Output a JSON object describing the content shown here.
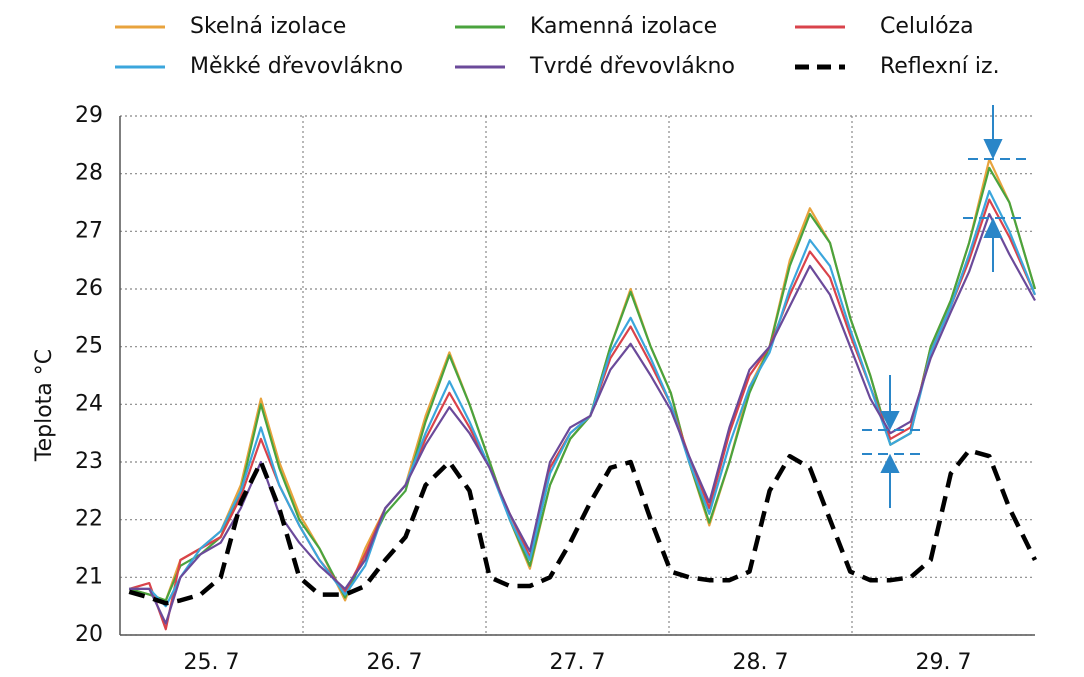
{
  "chart_data": {
    "type": "line",
    "ylabel": "Teplota °C",
    "x": [
      0.05,
      0.16,
      0.25,
      0.33,
      0.44,
      0.55,
      0.66,
      0.77,
      0.87,
      0.98,
      1.09,
      1.23,
      1.34,
      1.45,
      1.56,
      1.67,
      1.8,
      1.91,
      2.02,
      2.13,
      2.24,
      2.35,
      2.46,
      2.57,
      2.68,
      2.79,
      2.9,
      3.01,
      3.11,
      3.22,
      3.33,
      3.44,
      3.55,
      3.66,
      3.77,
      3.88,
      3.99,
      4.1,
      4.21,
      4.32,
      4.43,
      4.54,
      4.64,
      4.75,
      4.86,
      5.0
    ],
    "xlim": [
      0,
      5
    ],
    "xticks": [
      {
        "value": 0.5,
        "label": "25. 7"
      },
      {
        "value": 1.5,
        "label": "26. 7"
      },
      {
        "value": 2.5,
        "label": "27. 7"
      },
      {
        "value": 3.5,
        "label": "28. 7"
      },
      {
        "value": 4.5,
        "label": "29. 7"
      }
    ],
    "xgrid": [
      1,
      2,
      3,
      4
    ],
    "ylim": [
      20,
      29
    ],
    "yticks": [
      20,
      21,
      22,
      23,
      24,
      25,
      26,
      27,
      28,
      29
    ],
    "grid": true,
    "series": [
      {
        "name": "Skelná izolace",
        "color": "#e8a33d",
        "values": [
          20.8,
          20.7,
          20.6,
          21.3,
          21.5,
          21.8,
          22.6,
          24.1,
          23.0,
          22.1,
          21.5,
          20.6,
          21.5,
          22.2,
          22.6,
          23.8,
          24.9,
          24.0,
          23.0,
          22.0,
          21.15,
          22.6,
          23.4,
          23.8,
          25.0,
          26.0,
          25.0,
          24.2,
          23.0,
          21.9,
          23.0,
          24.3,
          25.0,
          26.5,
          27.4,
          26.8,
          25.5,
          24.5,
          23.3,
          23.5,
          25.0,
          25.8,
          26.8,
          28.25,
          27.5,
          26.0
        ]
      },
      {
        "name": "Kamenná izolace",
        "color": "#4aa33e",
        "values": [
          20.8,
          20.7,
          20.6,
          21.2,
          21.4,
          21.7,
          22.5,
          24.0,
          22.9,
          22.0,
          21.5,
          20.65,
          21.4,
          22.1,
          22.5,
          23.7,
          24.85,
          24.0,
          23.0,
          22.0,
          21.2,
          22.6,
          23.4,
          23.8,
          25.0,
          25.95,
          25.0,
          24.2,
          23.0,
          21.95,
          23.0,
          24.2,
          25.0,
          26.4,
          27.3,
          26.8,
          25.5,
          24.5,
          23.3,
          23.5,
          25.0,
          25.8,
          26.8,
          28.1,
          27.5,
          26.0
        ]
      },
      {
        "name": "Celulóza",
        "color": "#d9434b",
        "values": [
          20.8,
          20.9,
          20.1,
          21.3,
          21.5,
          21.7,
          22.4,
          23.4,
          22.6,
          21.9,
          21.3,
          20.75,
          21.4,
          22.2,
          22.6,
          23.4,
          24.2,
          23.6,
          22.9,
          22.1,
          21.35,
          22.9,
          23.5,
          23.8,
          24.8,
          25.35,
          24.7,
          24.0,
          23.1,
          22.2,
          23.5,
          24.5,
          25.0,
          25.9,
          26.65,
          26.2,
          25.2,
          24.3,
          23.4,
          23.6,
          24.9,
          25.7,
          26.5,
          27.55,
          26.9,
          25.9
        ]
      },
      {
        "name": "Měkké dřevovlákno",
        "color": "#3ba6dc",
        "values": [
          20.8,
          20.8,
          20.5,
          21.0,
          21.5,
          21.8,
          22.5,
          23.6,
          22.6,
          21.9,
          21.3,
          20.7,
          21.2,
          22.2,
          22.6,
          23.5,
          24.4,
          23.7,
          22.9,
          22.0,
          21.3,
          22.8,
          23.5,
          23.8,
          24.9,
          25.5,
          24.8,
          24.0,
          23.0,
          22.1,
          23.3,
          24.3,
          24.9,
          26.0,
          26.85,
          26.4,
          25.3,
          24.3,
          23.3,
          23.5,
          24.9,
          25.7,
          26.6,
          27.7,
          27.0,
          25.9
        ]
      },
      {
        "name": "Tvrdé dřevovlákno",
        "color": "#6b4a9a",
        "values": [
          20.8,
          20.8,
          20.2,
          21.0,
          21.4,
          21.6,
          22.2,
          23.0,
          22.1,
          21.6,
          21.2,
          20.8,
          21.3,
          22.2,
          22.6,
          23.3,
          23.95,
          23.5,
          22.9,
          22.1,
          21.45,
          23.0,
          23.6,
          23.8,
          24.6,
          25.05,
          24.5,
          23.9,
          23.1,
          22.3,
          23.6,
          24.6,
          25.0,
          25.7,
          26.4,
          25.9,
          25.0,
          24.1,
          23.5,
          23.7,
          24.8,
          25.6,
          26.3,
          27.3,
          26.6,
          25.8
        ]
      },
      {
        "name": "Reflexní iz.",
        "color": "#000000",
        "dashed": true,
        "values": [
          20.75,
          20.65,
          20.55,
          20.6,
          20.7,
          21.0,
          22.3,
          23.0,
          22.2,
          21.0,
          20.7,
          20.7,
          20.85,
          21.3,
          21.7,
          22.6,
          23.0,
          22.5,
          21.0,
          20.85,
          20.85,
          21.0,
          21.6,
          22.3,
          22.9,
          23.0,
          22.0,
          21.1,
          21.0,
          20.95,
          20.95,
          21.1,
          22.5,
          23.1,
          22.9,
          22.0,
          21.1,
          20.95,
          20.95,
          21.0,
          21.3,
          22.8,
          23.2,
          23.1,
          22.2,
          21.3
        ]
      }
    ]
  }
}
